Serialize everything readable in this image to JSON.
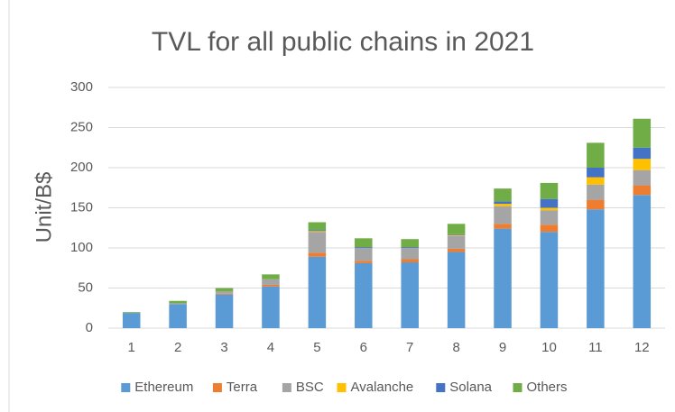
{
  "chart_data": {
    "type": "stacked_bar",
    "title": "TVL for all public chains in 2021",
    "y_label": "Unit/B$",
    "categories": [
      "1",
      "2",
      "3",
      "4",
      "5",
      "6",
      "7",
      "8",
      "9",
      "10",
      "11",
      "12"
    ],
    "series": [
      {
        "name": "Ethereum",
        "color": "#5b9bd5",
        "values": [
          19,
          30,
          42,
          52,
          89,
          81,
          82,
          95,
          124,
          120,
          148,
          166
        ]
      },
      {
        "name": "Terra",
        "color": "#ed7d31",
        "values": [
          0,
          0,
          1,
          2,
          5,
          3,
          4,
          4,
          6,
          9,
          12,
          12
        ]
      },
      {
        "name": "BSC",
        "color": "#a5a5a5",
        "values": [
          0,
          1,
          3,
          7,
          26,
          16,
          14,
          16,
          22,
          18,
          19,
          19
        ]
      },
      {
        "name": "Avalanche",
        "color": "#ffc000",
        "values": [
          0,
          0,
          0,
          0,
          1,
          0,
          0,
          1,
          3,
          3,
          9,
          14
        ]
      },
      {
        "name": "Solana",
        "color": "#4472c4",
        "values": [
          0,
          0,
          0,
          0,
          1,
          1,
          1,
          1,
          3,
          11,
          12,
          14
        ]
      },
      {
        "name": "Others",
        "color": "#70ad47",
        "values": [
          1,
          3,
          4,
          6,
          10,
          11,
          10,
          13,
          16,
          20,
          31,
          36
        ]
      }
    ],
    "ylim": [
      0,
      300
    ],
    "yticks": [
      0,
      50,
      100,
      150,
      200,
      250,
      300
    ],
    "grid": true,
    "legend": "bottom"
  }
}
